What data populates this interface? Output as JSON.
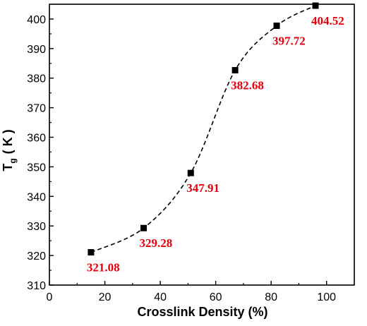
{
  "chart_data": {
    "type": "line",
    "title": "",
    "xlabel": "Crosslink Density (%)",
    "ylabel_main": "T",
    "ylabel_sub": "g",
    "ylabel_unit": "( K )",
    "xlim": [
      0,
      110
    ],
    "ylim": [
      310,
      405
    ],
    "xticks": [
      0,
      20,
      40,
      60,
      80,
      100
    ],
    "yticks": [
      310,
      320,
      330,
      340,
      350,
      360,
      370,
      380,
      390,
      400
    ],
    "grid": false,
    "legend": "none",
    "line_style": "dashed",
    "marker": "square",
    "colors": {
      "series": "#000000",
      "labels": "#e8000b",
      "axes": "#000000"
    },
    "series": [
      {
        "x": [
          15,
          34,
          51,
          67,
          82,
          96
        ],
        "y": [
          321.08,
          329.28,
          347.91,
          382.68,
          397.72,
          404.52
        ],
        "labels": [
          "321.08",
          "329.28",
          "347.91",
          "382.68",
          "397.72",
          "404.52"
        ]
      }
    ]
  }
}
